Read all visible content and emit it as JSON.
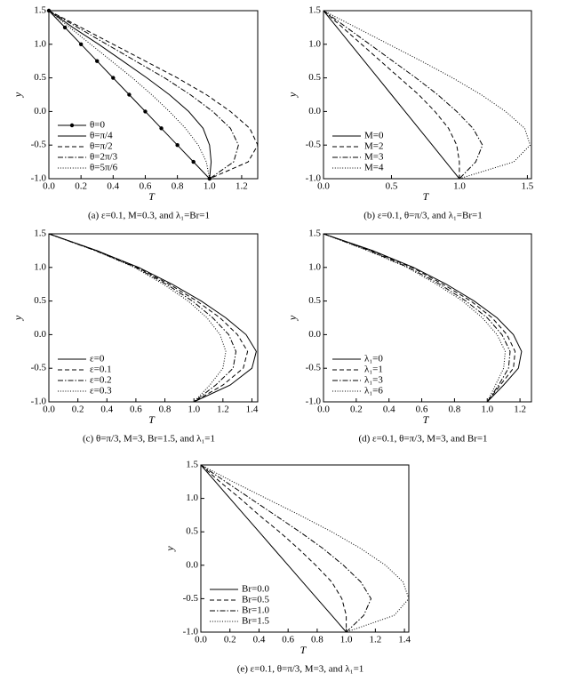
{
  "chart_data": [
    {
      "type": "line",
      "caption": "(a) ε=0.1, M=0.3, and λ₁=Br=1",
      "xlabel": "T",
      "ylabel": "y",
      "legend": "lower left",
      "xlim": [
        0,
        1.3
      ],
      "xticks": [
        {
          "value": 0,
          "label": "0.0"
        },
        0.2,
        0.4,
        0.6,
        0.8,
        {
          "value": 1,
          "label": "1.0"
        },
        1.2
      ],
      "ylim": [
        -1,
        1.5
      ],
      "yticks": [
        1.5,
        {
          "value": 1,
          "label": "1.0"
        },
        0.5,
        {
          "value": 0,
          "label": "0.0"
        },
        -0.5,
        {
          "value": -1,
          "label": "-1.0"
        }
      ],
      "y": [
        1.5,
        1.25,
        1.0,
        0.75,
        0.5,
        0.25,
        0,
        -0.25,
        -0.5,
        -0.75,
        -1.0
      ],
      "series": [
        {
          "name": "θ=0",
          "color": "#000000",
          "dash": "solid",
          "marker": "circle",
          "values": [
            0,
            0.1,
            0.2,
            0.3,
            0.4,
            0.5,
            0.6,
            0.7,
            0.8,
            0.9,
            1.0
          ]
        },
        {
          "name": "θ=π/4",
          "color": "#000000",
          "dash": "solid",
          "values": [
            0,
            0.15,
            0.31,
            0.46,
            0.61,
            0.75,
            0.87,
            0.96,
            1.0,
            1.01,
            1.0
          ]
        },
        {
          "name": "θ=π/2",
          "color": "#000000",
          "dash": "dashed",
          "values": [
            0,
            0.2,
            0.4,
            0.6,
            0.8,
            0.98,
            1.13,
            1.25,
            1.3,
            1.24,
            1.0
          ]
        },
        {
          "name": "θ=2π/3",
          "color": "#000000",
          "dash": "dashdot",
          "values": [
            0,
            0.18,
            0.36,
            0.54,
            0.72,
            0.88,
            1.02,
            1.13,
            1.18,
            1.15,
            1.0
          ]
        },
        {
          "name": "θ=5π/6",
          "color": "#000000",
          "dash": "dotted",
          "values": [
            0,
            0.13,
            0.26,
            0.39,
            0.52,
            0.64,
            0.75,
            0.85,
            0.93,
            0.98,
            1.0
          ]
        }
      ]
    },
    {
      "type": "line",
      "caption": "(b) ε=0.1, θ=π/3, and λ₁=Br=1",
      "xlabel": "T",
      "ylabel": "y",
      "legend": "lower left",
      "xlim": [
        0,
        1.53
      ],
      "xticks": [
        {
          "value": 0,
          "label": "0.0"
        },
        0.5,
        {
          "value": 1,
          "label": "1.0"
        },
        1.5
      ],
      "ylim": [
        -1,
        1.5
      ],
      "yticks": [
        1.5,
        {
          "value": 1,
          "label": "1.0"
        },
        0.5,
        {
          "value": 0,
          "label": "0.0"
        },
        -0.5,
        {
          "value": -1,
          "label": "-1.0"
        }
      ],
      "y": [
        1.5,
        1.25,
        1.0,
        0.75,
        0.5,
        0.25,
        0,
        -0.25,
        -0.5,
        -0.75,
        -1.0
      ],
      "series": [
        {
          "name": "M=0",
          "color": "#000000",
          "dash": "solid",
          "values": [
            0,
            0.1,
            0.2,
            0.3,
            0.4,
            0.5,
            0.6,
            0.7,
            0.8,
            0.9,
            1.0
          ]
        },
        {
          "name": "M=2",
          "color": "#000000",
          "dash": "dashed",
          "values": [
            0,
            0.14,
            0.28,
            0.42,
            0.56,
            0.7,
            0.82,
            0.92,
            0.98,
            1.0,
            1.0
          ]
        },
        {
          "name": "M=3",
          "color": "#000000",
          "dash": "dashdot",
          "values": [
            0,
            0.17,
            0.34,
            0.51,
            0.68,
            0.84,
            0.98,
            1.1,
            1.17,
            1.12,
            1.0
          ]
        },
        {
          "name": "M=4",
          "color": "#000000",
          "dash": "dotted",
          "values": [
            0,
            0.24,
            0.48,
            0.72,
            0.95,
            1.16,
            1.34,
            1.48,
            1.52,
            1.4,
            1.0
          ]
        }
      ]
    },
    {
      "type": "line",
      "caption": "(c) θ=π/3, M=3, Br=1.5, and λ₁=1",
      "xlabel": "T",
      "ylabel": "y",
      "legend": "lower left",
      "xlim": [
        0,
        1.44
      ],
      "xticks": [
        {
          "value": 0,
          "label": "0.0"
        },
        0.2,
        0.4,
        0.6,
        0.8,
        {
          "value": 1,
          "label": "1.0"
        },
        1.2,
        1.4
      ],
      "ylim": [
        -1,
        1.5
      ],
      "yticks": [
        1.5,
        {
          "value": 1,
          "label": "1.0"
        },
        0.5,
        {
          "value": 0,
          "label": "0.0"
        },
        -0.5,
        {
          "value": -1,
          "label": "-1.0"
        }
      ],
      "y": [
        1.5,
        1.25,
        1.0,
        0.75,
        0.5,
        0.25,
        0,
        -0.25,
        -0.5,
        -0.75,
        -1.0
      ],
      "series": [
        {
          "name": "ε=0",
          "color": "#000000",
          "dash": "solid",
          "values": [
            0,
            0.33,
            0.62,
            0.85,
            1.05,
            1.22,
            1.36,
            1.43,
            1.4,
            1.25,
            1.0
          ]
        },
        {
          "name": "ε=0.1",
          "color": "#000000",
          "dash": "dashed",
          "values": [
            0,
            0.33,
            0.61,
            0.83,
            1.02,
            1.18,
            1.3,
            1.37,
            1.34,
            1.2,
            1.0
          ]
        },
        {
          "name": "ε=0.2",
          "color": "#000000",
          "dash": "dashdot",
          "values": [
            0,
            0.32,
            0.6,
            0.81,
            0.99,
            1.13,
            1.24,
            1.29,
            1.27,
            1.15,
            1.0
          ]
        },
        {
          "name": "ε=0.3",
          "color": "#000000",
          "dash": "dotted",
          "values": [
            0,
            0.32,
            0.59,
            0.79,
            0.96,
            1.09,
            1.18,
            1.22,
            1.2,
            1.11,
            1.0
          ]
        }
      ]
    },
    {
      "type": "line",
      "caption": "(d) ε=0.1, θ=π/3, M=3, and Br=1",
      "xlabel": "T",
      "ylabel": "y",
      "legend": "lower left",
      "xlim": [
        0,
        1.27
      ],
      "xticks": [
        {
          "value": 0,
          "label": "0.0"
        },
        0.2,
        0.4,
        0.6,
        0.8,
        {
          "value": 1,
          "label": "1.0"
        },
        1.2
      ],
      "ylim": [
        -1,
        1.5
      ],
      "yticks": [
        1.5,
        {
          "value": 1,
          "label": "1.0"
        },
        0.5,
        {
          "value": 0,
          "label": "0.0"
        },
        -0.5,
        {
          "value": -1,
          "label": "-1.0"
        }
      ],
      "y": [
        1.5,
        1.25,
        1.0,
        0.75,
        0.5,
        0.25,
        0,
        -0.25,
        -0.5,
        -0.75,
        -1.0
      ],
      "series": [
        {
          "name": "λ₁=0",
          "color": "#000000",
          "dash": "solid",
          "values": [
            0,
            0.3,
            0.55,
            0.75,
            0.92,
            1.06,
            1.16,
            1.21,
            1.19,
            1.1,
            1.0
          ]
        },
        {
          "name": "λ₁=1",
          "color": "#000000",
          "dash": "dashed",
          "values": [
            0,
            0.29,
            0.54,
            0.73,
            0.9,
            1.03,
            1.12,
            1.17,
            1.16,
            1.08,
            1.0
          ]
        },
        {
          "name": "λ₁=3",
          "color": "#000000",
          "dash": "dashdot",
          "values": [
            0,
            0.28,
            0.52,
            0.71,
            0.87,
            1.0,
            1.09,
            1.14,
            1.13,
            1.07,
            1.0
          ]
        },
        {
          "name": "λ₁=6",
          "color": "#000000",
          "dash": "dotted",
          "values": [
            0,
            0.27,
            0.51,
            0.69,
            0.85,
            0.97,
            1.06,
            1.11,
            1.1,
            1.05,
            1.0
          ]
        }
      ]
    },
    {
      "type": "line",
      "caption": "(e) ε=0.1, θ=π/3, M=3, and λ₁=1",
      "xlabel": "T",
      "ylabel": "y",
      "legend": "lower left",
      "xlim": [
        0,
        1.43
      ],
      "xticks": [
        {
          "value": 0,
          "label": "0.0"
        },
        0.2,
        0.4,
        0.6,
        0.8,
        {
          "value": 1,
          "label": "1.0"
        },
        1.2,
        1.4
      ],
      "ylim": [
        -1,
        1.5
      ],
      "yticks": [
        1.5,
        {
          "value": 1,
          "label": "1.0"
        },
        0.5,
        {
          "value": 0,
          "label": "0.0"
        },
        -0.5,
        {
          "value": -1,
          "label": "-1.0"
        }
      ],
      "y": [
        1.5,
        1.25,
        1.0,
        0.75,
        0.5,
        0.25,
        0,
        -0.25,
        -0.5,
        -0.75,
        -1.0
      ],
      "series": [
        {
          "name": "Br=0.0",
          "color": "#000000",
          "dash": "solid",
          "values": [
            0,
            0.1,
            0.2,
            0.3,
            0.4,
            0.5,
            0.6,
            0.7,
            0.8,
            0.9,
            1.0
          ]
        },
        {
          "name": "Br=0.5",
          "color": "#000000",
          "dash": "dashed",
          "values": [
            0,
            0.13,
            0.27,
            0.4,
            0.54,
            0.67,
            0.79,
            0.9,
            0.97,
            1.0,
            1.0
          ]
        },
        {
          "name": "Br=1.0",
          "color": "#000000",
          "dash": "dashdot",
          "values": [
            0,
            0.17,
            0.34,
            0.51,
            0.68,
            0.84,
            0.98,
            1.1,
            1.17,
            1.12,
            1.0
          ]
        },
        {
          "name": "Br=1.5",
          "color": "#000000",
          "dash": "dotted",
          "values": [
            0,
            0.22,
            0.45,
            0.68,
            0.9,
            1.1,
            1.27,
            1.39,
            1.43,
            1.33,
            1.0
          ]
        }
      ]
    }
  ]
}
